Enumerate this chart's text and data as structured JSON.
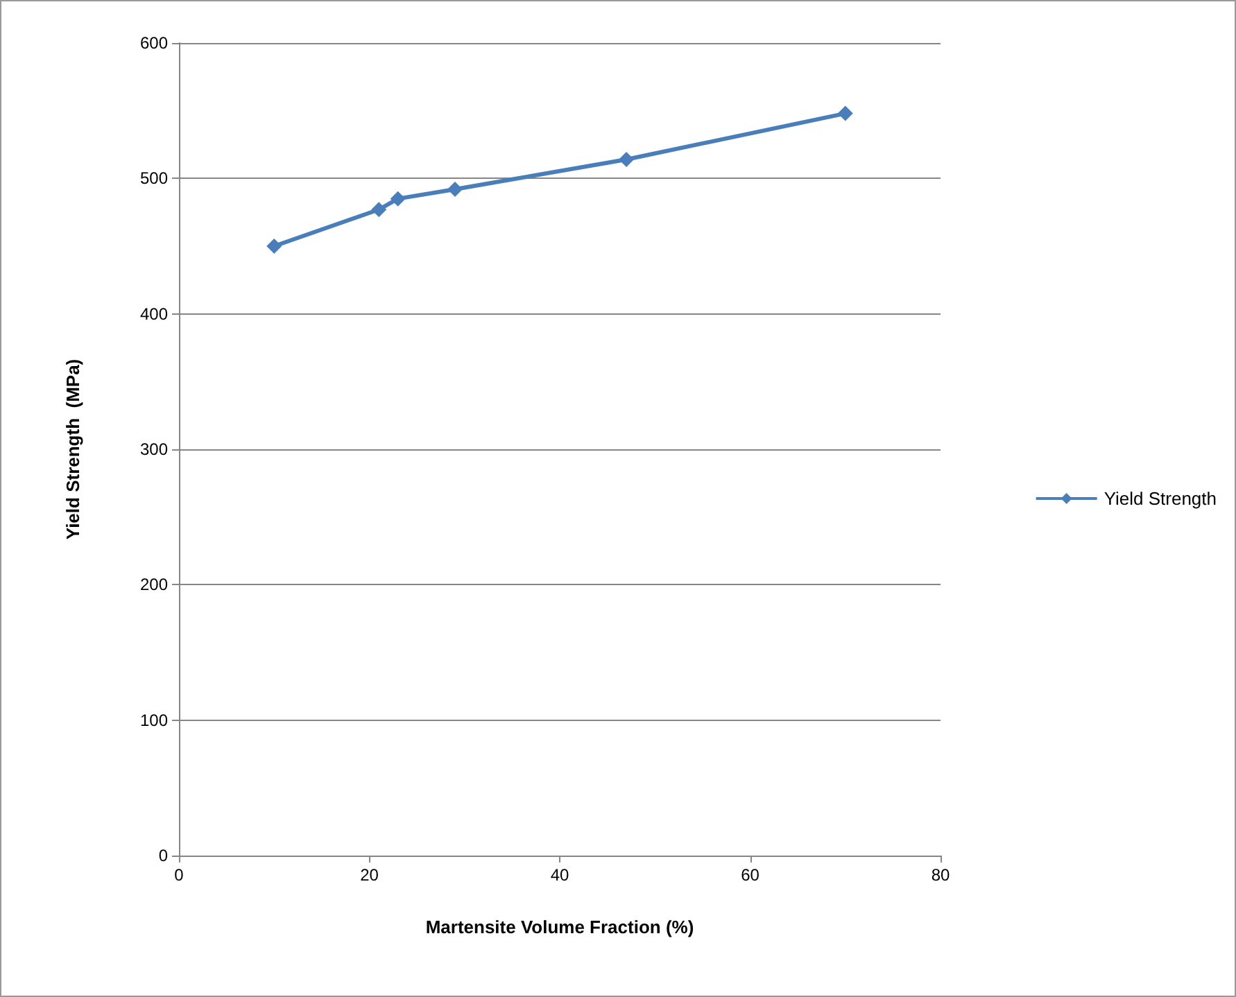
{
  "chart_data": {
    "type": "line",
    "xlabel": "Martensite Volume Fraction (%)",
    "ylabel": "Yield Strength  (MPa)",
    "x": [
      10,
      21,
      23,
      29,
      47,
      70
    ],
    "series": [
      {
        "name": "Yield Strength",
        "color": "#4a7ebb",
        "values": [
          450,
          477,
          485,
          492,
          514,
          548
        ]
      }
    ],
    "xlim": [
      0,
      80
    ],
    "xticks": [
      0,
      20,
      40,
      60,
      80
    ],
    "ylim": [
      0,
      600
    ],
    "yticks": [
      0,
      100,
      200,
      300,
      400,
      500,
      600
    ],
    "grid": "y",
    "legend": "right",
    "marker": "diamond",
    "line_style": "solid"
  }
}
